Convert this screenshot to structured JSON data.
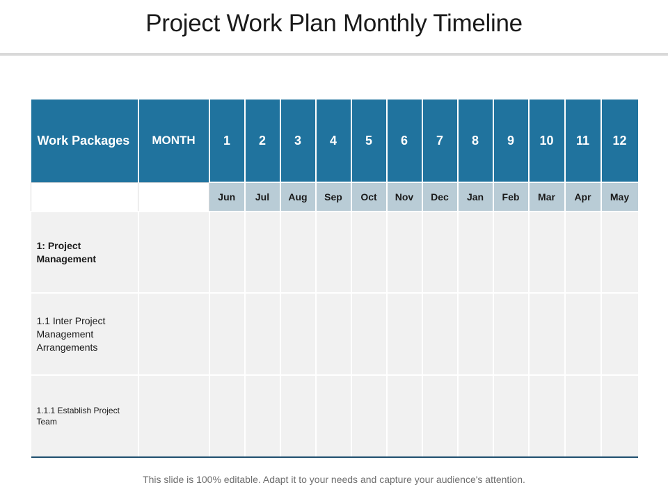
{
  "slide": {
    "title": "Project Work Plan Monthly Timeline",
    "footer": "This slide is 100% editable. Adapt it to your needs and capture your audience's attention."
  },
  "table": {
    "header": {
      "work_packages": "Work Packages",
      "month": "MONTH",
      "numbers": [
        "1",
        "2",
        "3",
        "4",
        "5",
        "6",
        "7",
        "8",
        "9",
        "10",
        "11",
        "12"
      ]
    },
    "month_names": [
      "Jun",
      "Jul",
      "Aug",
      "Sep",
      "Oct",
      "Nov",
      "Dec",
      "Jan",
      "Feb",
      "Mar",
      "Apr",
      "May"
    ],
    "rows": [
      {
        "label": "1: Project Management"
      },
      {
        "label": "1.1 Inter  Project Management Arrangements"
      },
      {
        "label": "1.1.1 Establish Project Team"
      }
    ]
  },
  "colors": {
    "header_bg": "#20739e",
    "month_row_bg": "#b9ccd6",
    "cell_bg": "#f1f1f1",
    "bottom_rule": "#1f4e6e"
  }
}
